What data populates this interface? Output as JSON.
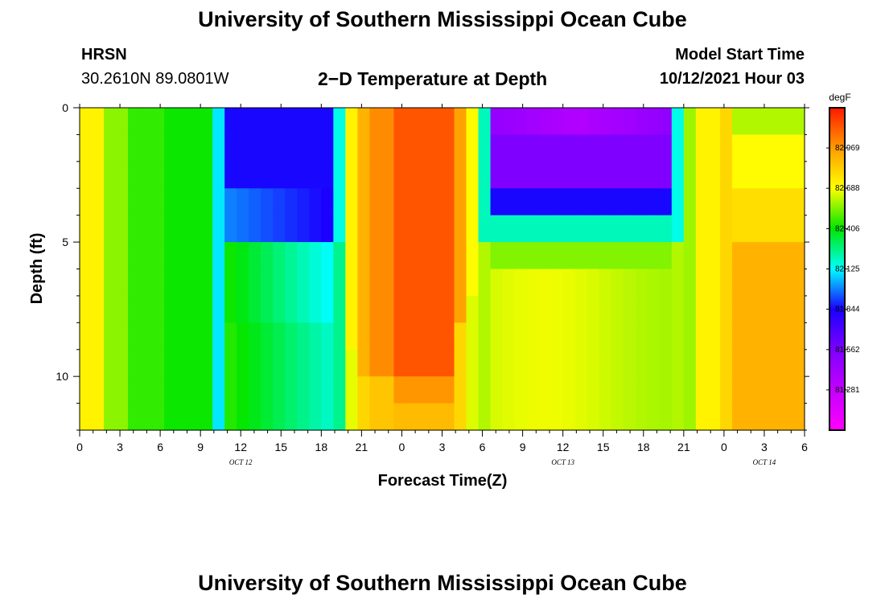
{
  "header": {
    "title": "University of Southern Mississippi Ocean Cube",
    "station": "HRSN",
    "location": "30.2610N  89.0801W",
    "plot_title": "2−D Temperature at Depth",
    "model_label": "Model Start Time",
    "model_time": "10/12/2021 Hour 03"
  },
  "footer": {
    "title": "University of Southern Mississippi Ocean Cube"
  },
  "chart_data": {
    "type": "heatmap",
    "title": "2−D Temperature at Depth",
    "xlabel": "Forecast Time(Z)",
    "ylabel": "Depth (ft)",
    "x_range_hours": [
      0,
      54
    ],
    "y_range_ft": [
      0,
      12
    ],
    "x_ticks": [
      "0",
      "3",
      "6",
      "9",
      "12",
      "15",
      "18",
      "21",
      "0",
      "3",
      "6",
      "9",
      "12",
      "15",
      "18",
      "21",
      "0",
      "3",
      "6"
    ],
    "day_labels": [
      {
        "label": "OCT 12",
        "at_hour": 12
      },
      {
        "label": "OCT 13",
        "at_hour": 36
      },
      {
        "label": "OCT 14",
        "at_hour": 51
      }
    ],
    "y_ticks": [
      0,
      5,
      10
    ],
    "colorbar": {
      "unit": "degF",
      "min": 81.0,
      "max": 83.25,
      "tick_labels": [
        "82.969",
        "82.688",
        "82.406",
        "82.125",
        "81.844",
        "81.562",
        "81.281"
      ]
    },
    "regions": [
      {
        "name": "purple-cold-pool-oct12",
        "hours": [
          11,
          19
        ],
        "depth_ft": [
          0,
          5.5
        ],
        "degF": 81.8
      },
      {
        "name": "warm-core-oct13",
        "hours": [
          23,
          28
        ],
        "depth_ft": [
          0,
          10
        ],
        "degF": 83.0
      },
      {
        "name": "purple-cold-pool-oct13",
        "hours": [
          30,
          44
        ],
        "depth_ft": [
          0,
          4.5
        ],
        "degF": 81.5
      },
      {
        "name": "warm-zone-oct14",
        "hours": [
          49,
          54
        ],
        "depth_ft": [
          3,
          12
        ],
        "degF": 82.95
      }
    ]
  }
}
